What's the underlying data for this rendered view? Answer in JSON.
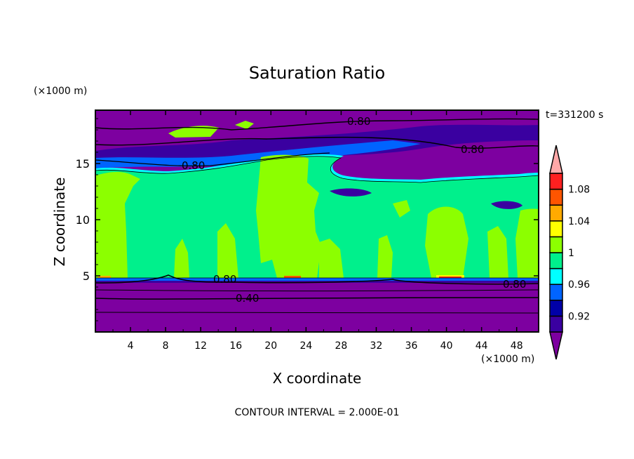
{
  "chart_data": {
    "type": "heatmap",
    "subtype": "filled-contour",
    "title": "Saturation Ratio",
    "xlabel": "X coordinate",
    "ylabel": "Z coordinate",
    "x_units": "(×1000 m)",
    "y_units": "(×1000 m)",
    "xlim": [
      0,
      50.5
    ],
    "ylim": [
      0,
      19.75
    ],
    "x_ticks": [
      4,
      8,
      12,
      16,
      20,
      24,
      28,
      32,
      36,
      40,
      44,
      48
    ],
    "y_ticks": [
      5,
      10,
      15
    ],
    "time_label": "t=331200 s",
    "footer": "CONTOUR INTERVAL = 2.000E-01",
    "contour_labels": [
      "0.80",
      "0.80",
      "0.80",
      "0.80",
      "0.80",
      "0.40"
    ],
    "colorbar": {
      "levels": [
        0.9,
        0.92,
        0.94,
        0.96,
        0.98,
        1.0,
        1.02,
        1.04,
        1.06,
        1.08,
        1.1
      ],
      "tick_labels": [
        {
          "value": 0.92,
          "label": "0.92"
        },
        {
          "value": 0.96,
          "label": "0.96"
        },
        {
          "value": 1.0,
          "label": "1"
        },
        {
          "value": 1.04,
          "label": "1.04"
        },
        {
          "value": 1.08,
          "label": "1.08"
        }
      ],
      "colors": [
        "#3a00a0",
        "#0000a8",
        "#0064ff",
        "#00ffff",
        "#00f08c",
        "#8cff00",
        "#ffff00",
        "#ffaa00",
        "#ff5500",
        "#ff2020"
      ],
      "under_color": "#7d00a0",
      "over_color": "#ffa8a8"
    }
  }
}
